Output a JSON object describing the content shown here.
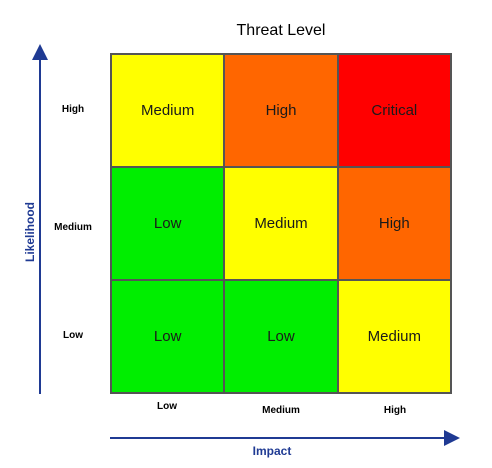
{
  "title": "Threat Level",
  "axes": {
    "y_title": "Likelihood",
    "x_title": "Impact",
    "y_labels": [
      "High",
      "Medium",
      "Low"
    ],
    "x_labels": [
      "Low",
      "Medium",
      "High"
    ],
    "arrow_color": "#1f3a93"
  },
  "matrix": {
    "rows": [
      [
        {
          "label": "Medium",
          "color": "#ffff00"
        },
        {
          "label": "High",
          "color": "#ff6600"
        },
        {
          "label": "Critical",
          "color": "#ff0000"
        }
      ],
      [
        {
          "label": "Low",
          "color": "#00ee00"
        },
        {
          "label": "Medium",
          "color": "#ffff00"
        },
        {
          "label": "High",
          "color": "#ff6600"
        }
      ],
      [
        {
          "label": "Low",
          "color": "#00ee00"
        },
        {
          "label": "Low",
          "color": "#00ee00"
        },
        {
          "label": "Medium",
          "color": "#ffff00"
        }
      ]
    ]
  }
}
